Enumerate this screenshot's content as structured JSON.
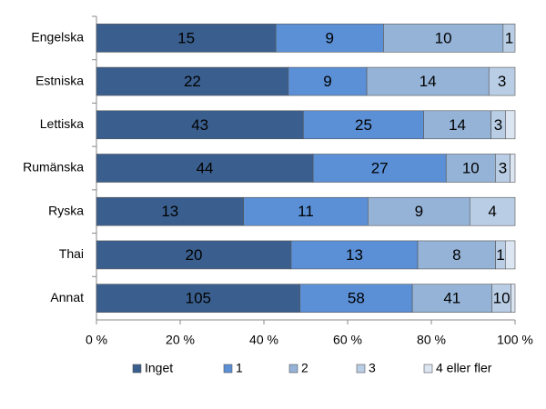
{
  "chart_data": {
    "type": "bar",
    "orientation": "horizontal",
    "stacking": "percent",
    "categories": [
      "Engelska",
      "Estniska",
      "Lettiska",
      "Rumänska",
      "Ryska",
      "Thai",
      "Annat"
    ],
    "series": [
      {
        "name": "Inget",
        "color": "#3a5f8e",
        "data_labels": true,
        "values": [
          15,
          22,
          43,
          44,
          13,
          20,
          105
        ]
      },
      {
        "name": "1",
        "color": "#5b8fd6",
        "data_labels": true,
        "values": [
          9,
          9,
          25,
          27,
          11,
          13,
          58
        ]
      },
      {
        "name": "2",
        "color": "#95b3d7",
        "data_labels": true,
        "values": [
          10,
          14,
          14,
          10,
          9,
          8,
          41
        ]
      },
      {
        "name": "3",
        "color": "#b9cde5",
        "data_labels": true,
        "values": [
          1,
          3,
          3,
          3,
          4,
          1,
          10
        ]
      },
      {
        "name": "4 eller fler",
        "color": "#dce6f2",
        "data_labels": false,
        "values": [
          0,
          0,
          2,
          1,
          0,
          1,
          2
        ]
      }
    ],
    "xlim": [
      0,
      100
    ],
    "xticks": [
      {
        "value": 0,
        "label": "0 %"
      },
      {
        "value": 20,
        "label": "20 %"
      },
      {
        "value": 40,
        "label": "40 %"
      },
      {
        "value": 60,
        "label": "60 %"
      },
      {
        "value": 80,
        "label": "80 %"
      },
      {
        "value": 100,
        "label": "100 %"
      }
    ],
    "grid": false,
    "legend": "bottom"
  }
}
